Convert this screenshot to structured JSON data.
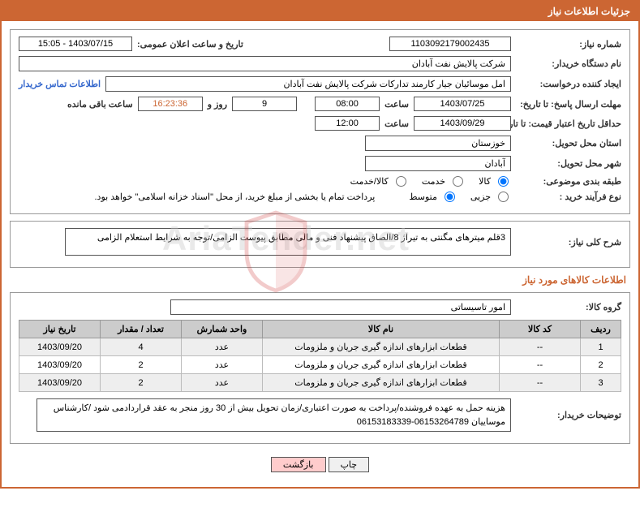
{
  "header": {
    "title": "جزئیات اطلاعات نیاز"
  },
  "fields": {
    "need_number_label": "شماره نیاز:",
    "need_number": "1103092179002435",
    "announce_date_label": "تاریخ و ساعت اعلان عمومی:",
    "announce_date": "1403/07/15 - 15:05",
    "buyer_org_label": "نام دستگاه خریدار:",
    "buyer_org": "شرکت پالایش نفت آبادان",
    "requester_label": "ایجاد کننده درخواست:",
    "requester": "امل موسائیان جیار کارمند تدارکات شرکت پالایش نفت آبادان",
    "contact_link": "اطلاعات تماس خریدار",
    "response_deadline_label": "مهلت ارسال پاسخ: تا تاریخ:",
    "response_date": "1403/07/25",
    "time_label": "ساعت",
    "response_time": "08:00",
    "days_remaining": "9",
    "days_word": "روز و",
    "time_remaining": "16:23:36",
    "remaining_label": "ساعت باقی مانده",
    "validity_label": "حداقل تاریخ اعتبار قیمت: تا تاریخ:",
    "validity_date": "1403/09/29",
    "validity_time": "12:00",
    "province_label": "استان محل تحویل:",
    "province": "خوزستان",
    "city_label": "شهر محل تحویل:",
    "city": "آبادان",
    "category_label": "طبقه بندی موضوعی:",
    "radio_kala": "کالا",
    "radio_khadmat": "خدمت",
    "radio_kala_khadmat": "کالا/خدمت",
    "purchase_type_label": "نوع فرآیند خرید :",
    "radio_partial": "جزیی",
    "radio_medium": "متوسط",
    "treasury_note": "پرداخت تمام یا بخشی از مبلغ خرید، از محل \"اسناد خزانه اسلامی\" خواهد بود.",
    "general_desc_label": "شرح کلی نیاز:",
    "general_desc": "3قلم میترهای مگنتی به تیراژ 8/الصاق پیشنهاد فنی و مالی مطابق پیوست الزامی/توجه به شرایط استعلام الزامی",
    "group_label": "گروه کالا:",
    "group": "امور تاسیساتی",
    "buyer_notes_label": "توضیحات خریدار:",
    "buyer_notes": "هزینه حمل به عهده فروشنده/پرداخت به صورت اعتباری/زمان تحویل بیش از 30 روز منجر به عقد قراردادمی شود /کارشناس موساییان 06153264789-06153183339"
  },
  "section_title": "اطلاعات کالاهای مورد نیاز",
  "table": {
    "headers": [
      "ردیف",
      "کد کالا",
      "نام کالا",
      "واحد شمارش",
      "تعداد / مقدار",
      "تاریخ نیاز"
    ],
    "rows": [
      [
        "1",
        "--",
        "قطعات ابزارهای اندازه گیری جریان و ملزومات",
        "عدد",
        "4",
        "1403/09/20"
      ],
      [
        "2",
        "--",
        "قطعات ابزارهای اندازه گیری جریان و ملزومات",
        "عدد",
        "2",
        "1403/09/20"
      ],
      [
        "3",
        "--",
        "قطعات ابزارهای اندازه گیری جریان و ملزومات",
        "عدد",
        "2",
        "1403/09/20"
      ]
    ]
  },
  "buttons": {
    "print": "چاپ",
    "back": "بازگشت"
  },
  "watermark": "AriaTender.net"
}
